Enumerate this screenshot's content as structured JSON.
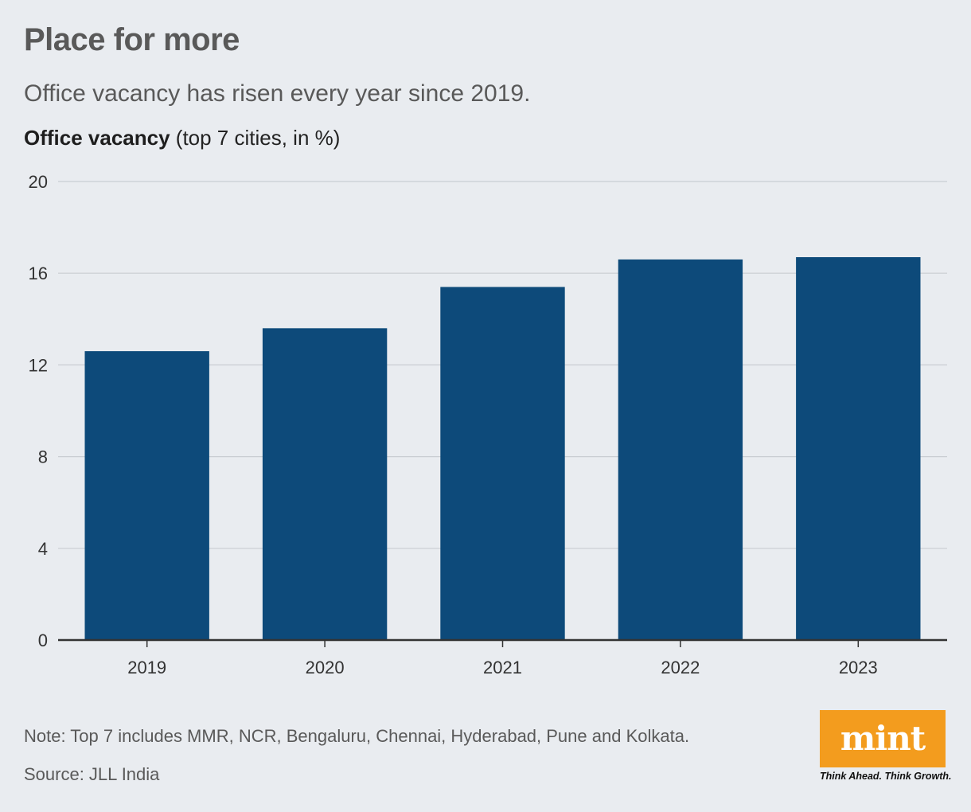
{
  "header": {
    "title": "Place for more",
    "subtitle": "Office vacancy has risen every year since 2019.",
    "measure_bold": "Office vacancy",
    "measure_rest": " (top 7 cities, in %)"
  },
  "chart_data": {
    "type": "bar",
    "title": "Place for more",
    "subtitle": "Office vacancy has risen every year since 2019.",
    "xlabel": "",
    "ylabel": "Office vacancy (top 7 cities, in %)",
    "categories": [
      "2019",
      "2020",
      "2021",
      "2022",
      "2023"
    ],
    "values": [
      12.6,
      13.6,
      15.4,
      16.6,
      16.7
    ],
    "ylim": [
      0,
      20
    ],
    "yticks": [
      0,
      4,
      8,
      12,
      16,
      20
    ],
    "grid": true,
    "bar_color": "#0d4a7a"
  },
  "footer": {
    "note": "Note: Top 7 includes MMR, NCR, Bengaluru, Chennai, Hyderabad, Pune and Kolkata.",
    "source": "Source: JLL India"
  },
  "brand": {
    "logo_text": "mint",
    "tagline": "Think Ahead. Think Growth.",
    "logo_color": "#f39c1e"
  }
}
